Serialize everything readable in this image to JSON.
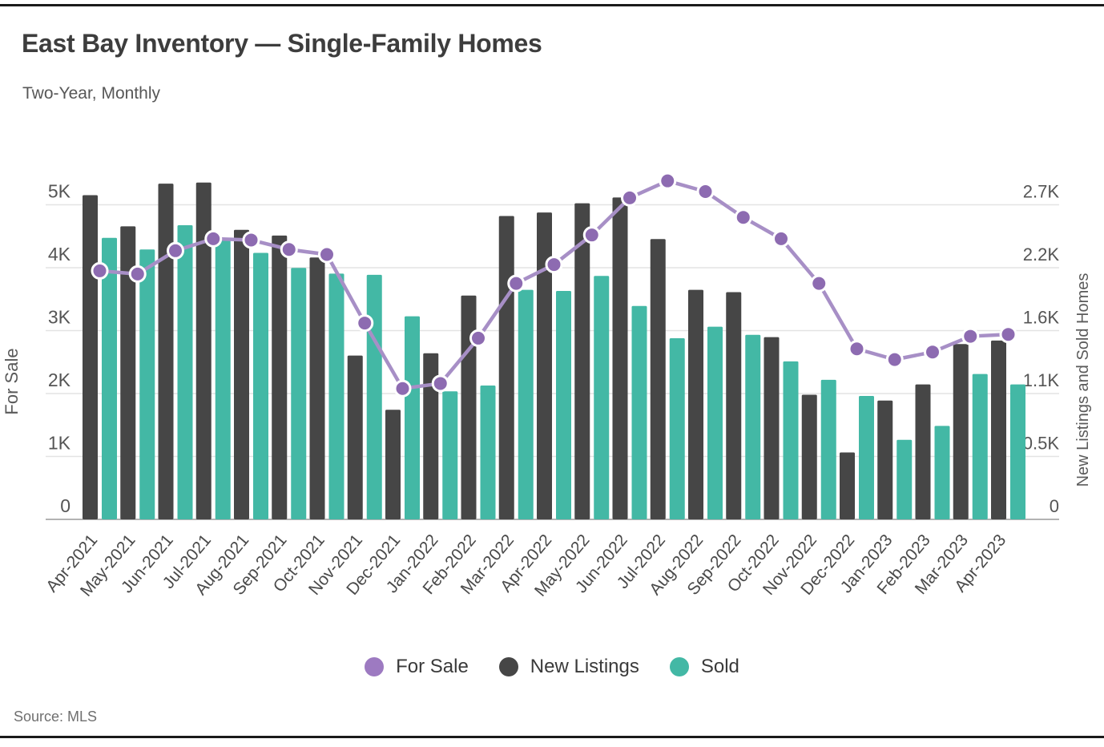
{
  "header": {
    "title": "East Bay Inventory — Single-Family Homes",
    "subtitle": "Two-Year, Monthly"
  },
  "footer": {
    "source": "Source: MLS"
  },
  "legend": {
    "items": [
      {
        "label": "For Sale",
        "color": "#9d7ac1"
      },
      {
        "label": "New Listings",
        "color": "#464646"
      },
      {
        "label": "Sold",
        "color": "#43b8a5"
      }
    ]
  },
  "colors": {
    "line": "#a78fc6",
    "point": "#8d6bb1",
    "point_ring": "#ffffff",
    "bar_new_listings": "#464646",
    "bar_sold": "#43b8a5",
    "gridline": "#e3e3e3",
    "zero_line": "#b3b3b3",
    "tick_text": "#555555",
    "axis_title_text": "#5a5a5a",
    "month_text": "#4a4a4a",
    "border": "#1a1a1a"
  },
  "chart_data": {
    "type": "bar",
    "subtype": "grouped-bars-with-line-overlay",
    "title": "East Bay Inventory — Single-Family Homes",
    "subtitle": "Two-Year, Monthly",
    "grid": "horizontal",
    "legend_position": "bottom",
    "categories": [
      "Apr-2021",
      "May-2021",
      "Jun-2021",
      "Jul-2021",
      "Aug-2021",
      "Sep-2021",
      "Oct-2021",
      "Nov-2021",
      "Dec-2021",
      "Jan-2022",
      "Feb-2022",
      "Mar-2022",
      "Apr-2022",
      "May-2022",
      "Jun-2022",
      "Jul-2022",
      "Aug-2022",
      "Sep-2022",
      "Oct-2022",
      "Nov-2022",
      "Dec-2022",
      "Jan-2023",
      "Feb-2023",
      "Mar-2023",
      "Apr-2023"
    ],
    "series": [
      {
        "name": "For Sale",
        "type": "line",
        "axis": "left",
        "values": [
          3950,
          3900,
          4270,
          4460,
          4440,
          4290,
          4210,
          3120,
          2080,
          2160,
          2880,
          3750,
          4050,
          4520,
          5110,
          5380,
          5210,
          4800,
          4460,
          3750,
          2710,
          2540,
          2660,
          2910,
          2940
        ]
      },
      {
        "name": "New Listings",
        "type": "bar",
        "axis": "right",
        "values": [
          2810,
          2540,
          2910,
          2920,
          2510,
          2460,
          2270,
          1420,
          950,
          1440,
          1940,
          2630,
          2660,
          2740,
          2790,
          2430,
          1990,
          1970,
          1580,
          1080,
          580,
          1030,
          1170,
          1520,
          1550
        ]
      },
      {
        "name": "Sold",
        "type": "bar",
        "axis": "right",
        "values": [
          2440,
          2340,
          2550,
          2440,
          2310,
          2180,
          2130,
          2120,
          1760,
          1110,
          1160,
          1990,
          1980,
          2110,
          1850,
          1570,
          1670,
          1600,
          1370,
          1210,
          1070,
          690,
          810,
          1260,
          1170
        ]
      }
    ],
    "axes": {
      "left": {
        "title": "For Sale",
        "ticks": [
          0,
          1000,
          2000,
          3000,
          4000,
          5000
        ],
        "tick_labels": [
          "0",
          "1K",
          "2K",
          "3K",
          "4K",
          "5K"
        ],
        "max": 5000
      },
      "right": {
        "title": "New Listings and Sold Homes",
        "ticks": [
          0,
          545,
          1091,
          1636,
          2182,
          2727
        ],
        "tick_labels": [
          "0",
          "0.5K",
          "1.1K",
          "1.6K",
          "2.2K",
          "2.7K"
        ],
        "max": 2727
      }
    }
  }
}
